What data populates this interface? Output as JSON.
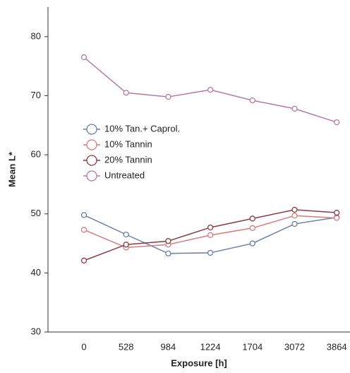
{
  "chart_data": {
    "type": "line",
    "x_label": "Exposure [h]",
    "y_label": "Mean L*",
    "categories": [
      "0",
      "528",
      "984",
      "1224",
      "1704",
      "3072",
      "3864"
    ],
    "ylim": [
      30,
      85
    ],
    "yticks": [
      30,
      40,
      50,
      60,
      70,
      80
    ],
    "legend": "left",
    "series": [
      {
        "name": "10% Tan.+ Caprol.",
        "color": "#6a7ea8",
        "values": [
          49.8,
          46.5,
          43.3,
          43.4,
          45.0,
          48.3,
          49.4
        ]
      },
      {
        "name": "10% Tannin",
        "color": "#d97a7c",
        "values": [
          47.3,
          44.3,
          44.8,
          46.4,
          47.6,
          49.7,
          49.3
        ]
      },
      {
        "name": "20% Tannin",
        "color": "#8b3a42",
        "values": [
          42.1,
          44.8,
          45.4,
          47.7,
          49.2,
          50.7,
          50.2
        ]
      },
      {
        "name": "Untreated",
        "color": "#b879a0",
        "values": [
          76.5,
          70.5,
          69.8,
          71.0,
          69.2,
          67.8,
          65.5
        ]
      }
    ]
  }
}
